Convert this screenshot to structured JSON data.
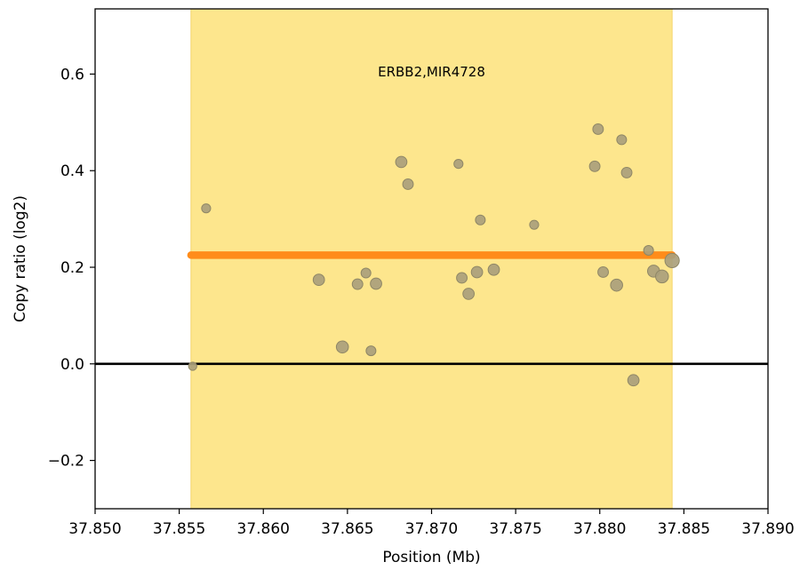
{
  "chart_data": {
    "type": "scatter",
    "xlabel": "Position (Mb)",
    "ylabel": "Copy ratio (log2)",
    "xlim": [
      37.85,
      37.89
    ],
    "ylim": [
      -0.3,
      0.735
    ],
    "x_ticks": [
      37.85,
      37.855,
      37.86,
      37.865,
      37.87,
      37.875,
      37.88,
      37.885,
      37.89
    ],
    "x_tick_labels": [
      "37.850",
      "37.855",
      "37.860",
      "37.865",
      "37.870",
      "37.875",
      "37.880",
      "37.885",
      "37.890"
    ],
    "y_ticks": [
      -0.2,
      0.0,
      0.2,
      0.4,
      0.6
    ],
    "y_tick_labels": [
      "−0.2",
      "0.0",
      "0.2",
      "0.4",
      "0.6"
    ],
    "highlight_region": {
      "x_start": 37.8557,
      "x_end": 37.8843,
      "label": "ERBB2,MIR4728",
      "label_y": 0.595
    },
    "segment": {
      "x_start": 37.8557,
      "x_end": 37.8843,
      "y": 0.225
    },
    "baseline_y": 0.0,
    "points": [
      {
        "x": 37.8558,
        "y": -0.005,
        "w": 0.5
      },
      {
        "x": 37.8566,
        "y": 0.322,
        "w": 0.6
      },
      {
        "x": 37.8633,
        "y": 0.174,
        "w": 0.9
      },
      {
        "x": 37.8647,
        "y": 0.035,
        "w": 1.0
      },
      {
        "x": 37.8656,
        "y": 0.165,
        "w": 0.8
      },
      {
        "x": 37.8661,
        "y": 0.188,
        "w": 0.7
      },
      {
        "x": 37.8664,
        "y": 0.027,
        "w": 0.7
      },
      {
        "x": 37.8667,
        "y": 0.166,
        "w": 0.9
      },
      {
        "x": 37.8682,
        "y": 0.418,
        "w": 0.9
      },
      {
        "x": 37.8686,
        "y": 0.372,
        "w": 0.8
      },
      {
        "x": 37.8716,
        "y": 0.414,
        "w": 0.6
      },
      {
        "x": 37.8718,
        "y": 0.178,
        "w": 0.8
      },
      {
        "x": 37.8722,
        "y": 0.145,
        "w": 0.9
      },
      {
        "x": 37.8727,
        "y": 0.19,
        "w": 0.9
      },
      {
        "x": 37.8729,
        "y": 0.298,
        "w": 0.7
      },
      {
        "x": 37.8737,
        "y": 0.195,
        "w": 0.9
      },
      {
        "x": 37.8761,
        "y": 0.288,
        "w": 0.6
      },
      {
        "x": 37.8797,
        "y": 0.409,
        "w": 0.8
      },
      {
        "x": 37.8799,
        "y": 0.486,
        "w": 0.8
      },
      {
        "x": 37.8802,
        "y": 0.19,
        "w": 0.8
      },
      {
        "x": 37.881,
        "y": 0.163,
        "w": 1.0
      },
      {
        "x": 37.8813,
        "y": 0.464,
        "w": 0.7
      },
      {
        "x": 37.8816,
        "y": 0.396,
        "w": 0.8
      },
      {
        "x": 37.882,
        "y": -0.034,
        "w": 0.9
      },
      {
        "x": 37.8829,
        "y": 0.235,
        "w": 0.7
      },
      {
        "x": 37.8832,
        "y": 0.192,
        "w": 1.0
      },
      {
        "x": 37.8837,
        "y": 0.181,
        "w": 1.1
      },
      {
        "x": 37.8843,
        "y": 0.214,
        "w": 1.3
      }
    ],
    "colors": {
      "highlight": "#fde68d",
      "highlight_edge": "#f3d56a",
      "segment": "#ff8c1a",
      "baseline": "#000000",
      "point_fill": "#aaa07c",
      "point_stroke": "#8f8766"
    }
  }
}
